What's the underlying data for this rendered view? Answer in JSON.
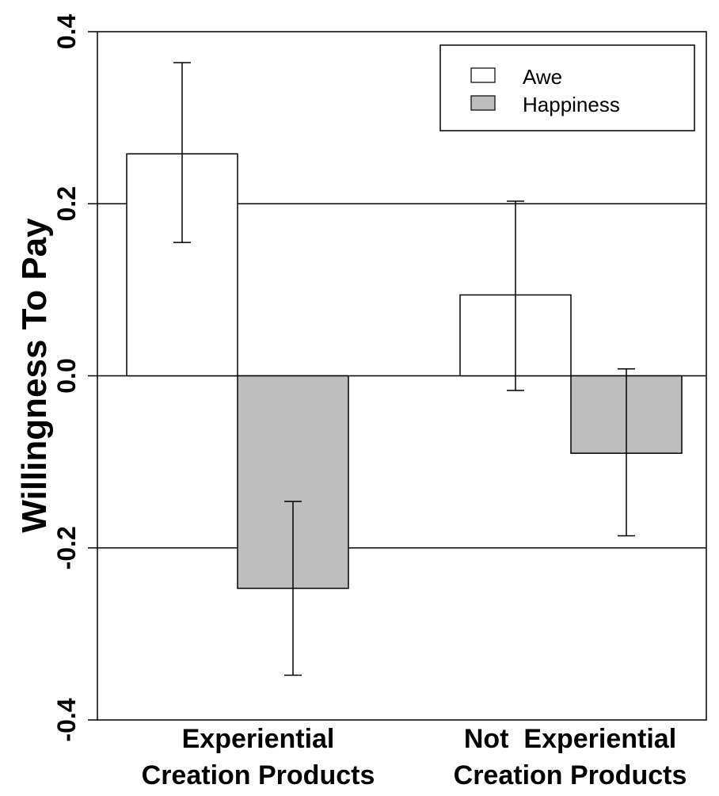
{
  "chart_data": {
    "type": "bar",
    "ylabel": "Willingness To Pay",
    "ylim": [
      -0.4,
      0.4
    ],
    "yticks": [
      "-0.4",
      "-0.2",
      "0.0",
      "0.2",
      "0.4"
    ],
    "gridlines_at": [
      -0.2,
      0.0,
      0.2
    ],
    "categories": [
      [
        "Experiential",
        "Creation Products"
      ],
      [
        "Not  Experiential",
        "Creation Products"
      ]
    ],
    "series": [
      {
        "name": "Awe",
        "color": "#ffffff",
        "values": [
          0.258,
          0.094
        ],
        "error_low": [
          0.155,
          -0.017
        ],
        "error_high": [
          0.364,
          0.203
        ]
      },
      {
        "name": "Happiness",
        "color": "#bebebe",
        "values": [
          -0.247,
          -0.09
        ],
        "error_low": [
          -0.348,
          -0.186
        ],
        "error_high": [
          -0.146,
          0.008
        ]
      }
    ],
    "legend_position": "top-right"
  }
}
